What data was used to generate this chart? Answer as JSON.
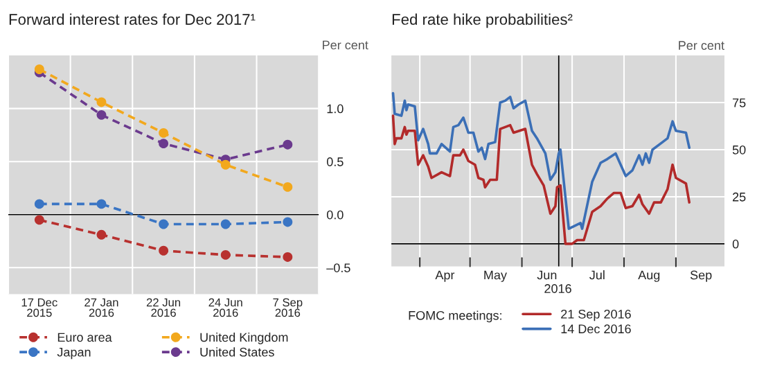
{
  "chart_data": [
    {
      "type": "line",
      "title": "Forward interest rates for Dec 2017¹",
      "ylabel": "Per cent",
      "categories": [
        "17 Dec\n2015",
        "27 Jan\n2016",
        "22 Jun\n2016",
        "24 Jun\n2016",
        "7 Sep\n2016"
      ],
      "series": [
        {
          "name": "Euro area",
          "color": "#b8312f",
          "values": [
            -0.05,
            -0.19,
            -0.34,
            -0.38,
            -0.4
          ]
        },
        {
          "name": "Japan",
          "color": "#3a75c4",
          "values": [
            0.1,
            0.1,
            -0.09,
            -0.09,
            -0.07
          ]
        },
        {
          "name": "United Kingdom",
          "color": "#f2a81d",
          "values": [
            1.37,
            1.06,
            0.77,
            0.47,
            0.26
          ]
        },
        {
          "name": "United States",
          "color": "#6b3a8e",
          "values": [
            1.34,
            0.94,
            0.67,
            0.52,
            0.66
          ]
        }
      ],
      "ylim": [
        -0.75,
        1.5
      ],
      "yticks": [
        {
          "value": -0.5,
          "label": "–0.5"
        },
        {
          "value": 0,
          "label": "0.0"
        },
        {
          "value": 0.5,
          "label": "0.5"
        },
        {
          "value": 1,
          "label": "1.0"
        }
      ],
      "ref_lines": [
        {
          "axis": "y",
          "value": 0,
          "color": "#000000"
        }
      ],
      "grid": true,
      "legend": "bottom",
      "marker": "circle",
      "line_style": "dashed"
    },
    {
      "type": "line",
      "title": "Fed rate hike probabilities²",
      "ylabel": "Per cent",
      "xlabel": "2016",
      "legend_title": "FOMC meetings:",
      "series": [
        {
          "name": "21 Sep 2016",
          "color": "#b22a2a",
          "x": [
            "2016-03-16",
            "2016-03-17",
            "2016-03-18",
            "2016-03-21",
            "2016-03-23",
            "2016-03-24",
            "2016-03-25",
            "2016-03-29",
            "2016-03-31",
            "2016-04-03",
            "2016-04-06",
            "2016-04-08",
            "2016-04-14",
            "2016-04-19",
            "2016-04-21",
            "2016-04-25",
            "2016-04-27",
            "2016-04-30",
            "2016-05-04",
            "2016-05-06",
            "2016-05-09",
            "2016-05-10",
            "2016-05-13",
            "2016-05-17",
            "2016-05-19",
            "2016-05-25",
            "2016-05-27",
            "2016-06-03",
            "2016-06-07",
            "2016-06-10",
            "2016-06-14",
            "2016-06-18",
            "2016-06-21",
            "2016-06-22",
            "2016-06-24",
            "2016-06-27",
            "2016-07-01",
            "2016-07-04",
            "2016-07-08",
            "2016-07-13",
            "2016-07-18",
            "2016-07-22",
            "2016-07-26",
            "2016-07-30",
            "2016-08-02",
            "2016-08-06",
            "2016-08-10",
            "2016-08-12",
            "2016-08-16",
            "2016-08-19",
            "2016-08-23",
            "2016-08-27",
            "2016-08-30",
            "2016-09-01",
            "2016-09-07",
            "2016-09-09"
          ],
          "values": [
            68,
            53,
            56,
            56,
            62,
            58,
            60,
            60,
            42,
            47,
            41,
            35,
            38,
            36,
            47,
            47,
            50,
            44,
            42,
            35,
            34,
            30,
            34,
            34,
            61,
            63,
            59,
            61,
            42,
            37,
            31,
            16,
            20,
            30,
            31,
            0,
            0,
            2,
            2,
            17,
            20,
            24,
            27,
            27,
            19,
            20,
            26,
            21,
            16,
            22,
            22,
            29,
            42,
            35,
            32,
            22
          ]
        },
        {
          "name": "14 Dec 2016",
          "color": "#3b6fb6",
          "x": [
            "2016-03-16",
            "2016-03-17",
            "2016-03-21",
            "2016-03-23",
            "2016-03-24",
            "2016-03-25",
            "2016-03-29",
            "2016-03-31",
            "2016-04-03",
            "2016-04-06",
            "2016-04-07",
            "2016-04-11",
            "2016-04-14",
            "2016-04-19",
            "2016-04-21",
            "2016-04-24",
            "2016-04-27",
            "2016-04-30",
            "2016-05-03",
            "2016-05-06",
            "2016-05-08",
            "2016-05-10",
            "2016-05-12",
            "2016-05-16",
            "2016-05-19",
            "2016-05-22",
            "2016-05-25",
            "2016-05-27",
            "2016-05-30",
            "2016-06-03",
            "2016-06-07",
            "2016-06-10",
            "2016-06-15",
            "2016-06-18",
            "2016-06-21",
            "2016-06-23",
            "2016-06-24",
            "2016-06-29",
            "2016-07-06",
            "2016-07-07",
            "2016-07-13",
            "2016-07-18",
            "2016-07-22",
            "2016-07-27",
            "2016-08-02",
            "2016-08-06",
            "2016-08-10",
            "2016-08-12",
            "2016-08-14",
            "2016-08-16",
            "2016-08-18",
            "2016-08-24",
            "2016-08-27",
            "2016-08-30",
            "2016-09-01",
            "2016-09-07",
            "2016-09-09"
          ],
          "values": [
            80,
            69,
            68,
            76,
            71,
            74,
            73,
            55,
            61,
            53,
            48,
            48,
            53,
            49,
            62,
            63,
            67,
            59,
            59,
            49,
            51,
            45,
            53,
            54,
            75,
            76,
            78,
            72,
            74,
            76,
            60,
            56,
            48,
            34,
            38,
            48,
            50,
            8,
            11,
            8,
            33,
            43,
            45,
            48,
            36,
            39,
            47,
            42,
            48,
            43,
            50,
            54,
            56,
            65,
            60,
            59,
            51
          ]
        }
      ],
      "xlim": [
        "2016-03-15",
        "2016-09-30"
      ],
      "xticks": [
        {
          "value": "2016-04-01",
          "label": null
        },
        {
          "value": "2016-05-01",
          "label": null
        },
        {
          "value": "2016-06-01",
          "label": null
        },
        {
          "value": "2016-07-01",
          "label": null
        },
        {
          "value": "2016-08-01",
          "label": null
        },
        {
          "value": "2016-09-01",
          "label": null
        },
        {
          "value": "2016-04-16",
          "label": "Apr"
        },
        {
          "value": "2016-05-16",
          "label": "May"
        },
        {
          "value": "2016-06-16",
          "label": "Jun"
        },
        {
          "value": "2016-07-16",
          "label": "Jul"
        },
        {
          "value": "2016-08-16",
          "label": "Aug"
        },
        {
          "value": "2016-09-16",
          "label": "Sep"
        }
      ],
      "ylim": [
        -12,
        100
      ],
      "yticks": [
        0,
        25,
        50,
        75
      ],
      "ref_lines": [
        {
          "axis": "y",
          "value": 0,
          "color": "#000000"
        },
        {
          "axis": "x",
          "value": "2016-06-23",
          "color": "#000000"
        }
      ],
      "grid": true,
      "legend": "bottom",
      "marker": "none",
      "line_style": "solid"
    }
  ]
}
